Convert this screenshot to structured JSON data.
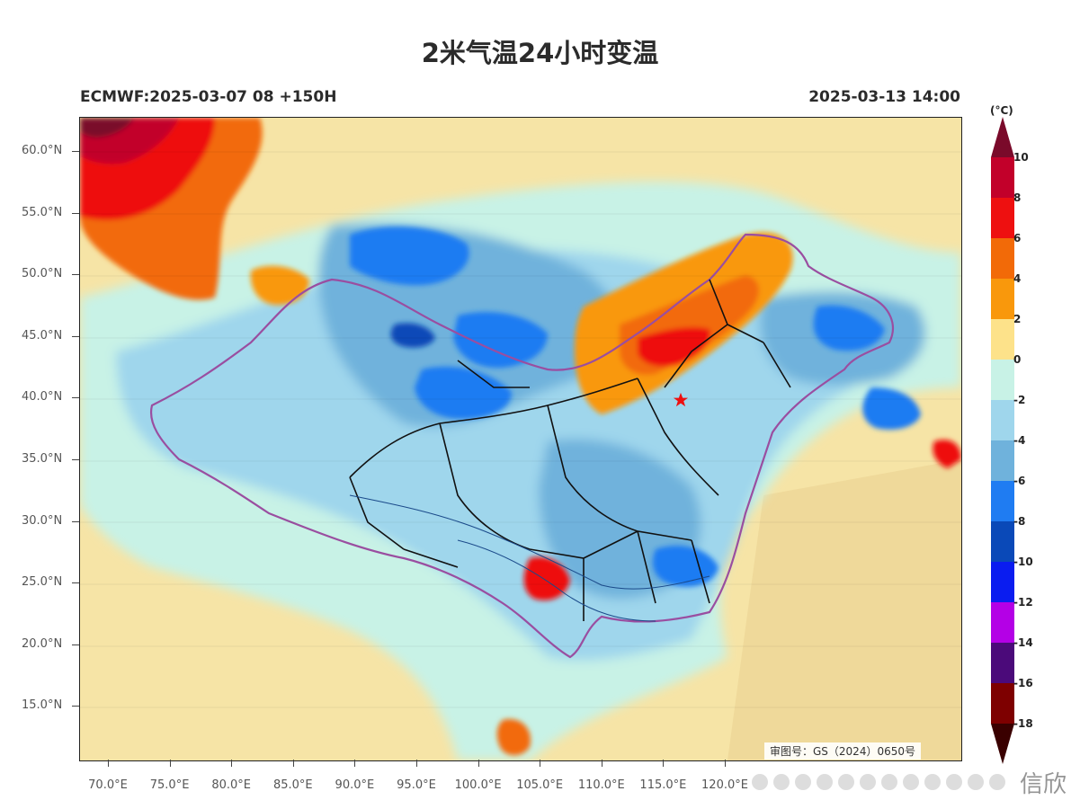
{
  "title": "2米气温24小时变温",
  "subtitle_left": "ECMWF:2025-03-07 08 +150H",
  "subtitle_right": "2025-03-13 14:00",
  "legend": {
    "unit": "(°C)",
    "labels": [
      "10",
      "8",
      "6",
      "4",
      "2",
      "0",
      "-2",
      "-4",
      "-6",
      "-8",
      "-10",
      "-12",
      "-14",
      "-16",
      "-18"
    ],
    "colors": [
      "#7a0a2a",
      "#c2002a",
      "#ee1010",
      "#f26a08",
      "#f9980c",
      "#fde28a",
      "#c8f2e6",
      "#9fd6ec",
      "#6fb2dc",
      "#1f7cf2",
      "#0a49b8",
      "#0a1cf0",
      "#b400e6",
      "#4b0a7a",
      "#7e0000",
      "#3a0000"
    ]
  },
  "lat_labels": [
    "60.0°N",
    "55.0°N",
    "50.0°N",
    "45.0°N",
    "40.0°N",
    "35.0°N",
    "30.0°N",
    "25.0°N",
    "20.0°N",
    "15.0°N"
  ],
  "lon_labels": [
    "70.0°E",
    "75.0°E",
    "80.0°E",
    "85.0°E",
    "90.0°E",
    "95.0°E",
    "100.0°E",
    "105.0°E",
    "110.0°E",
    "115.0°E",
    "120.0°E"
  ],
  "approval_number": "审图号：GS（2024）0650号",
  "watermark": "信欣",
  "capital_marker": "star-icon"
}
